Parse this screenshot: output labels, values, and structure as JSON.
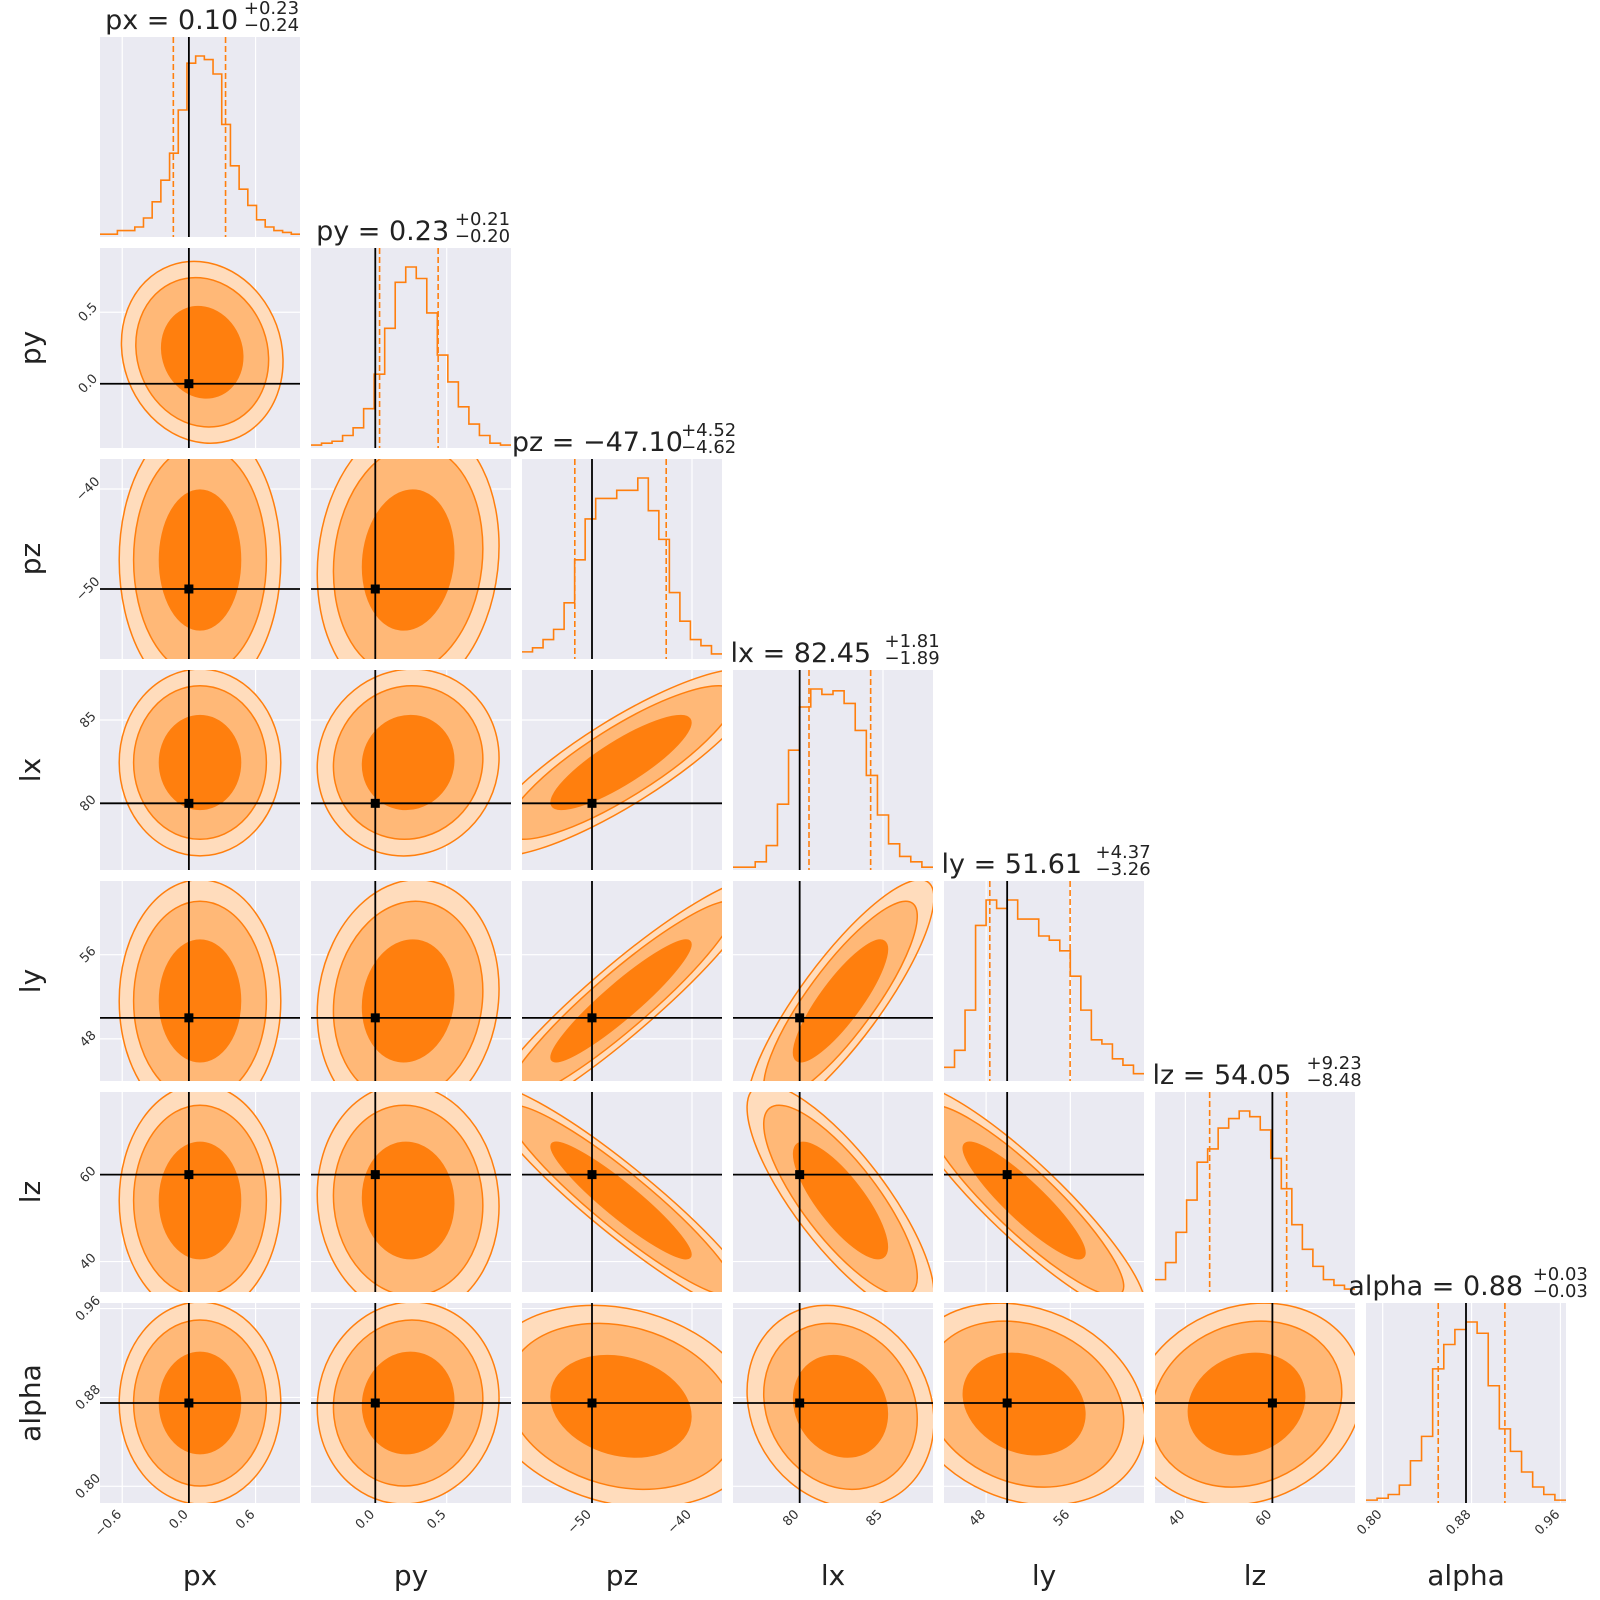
{
  "chart_data": {
    "type": "corner",
    "parameters": [
      "px",
      "py",
      "pz",
      "lx",
      "ly",
      "lz",
      "alpha"
    ],
    "colors": {
      "accent": "#ff7f0e",
      "fill_1sigma": "#ff7f0e",
      "fill_2sigma": "#ffb877",
      "fill_3sigma": "#ffdcbc",
      "panel_bg": "#eaeaf2",
      "truth": "#000000"
    },
    "truths": {
      "px": 0.0,
      "py": 0.0,
      "pz": -50,
      "lx": 80,
      "ly": 50,
      "lz": 60,
      "alpha": 0.875
    },
    "ranges": {
      "px": [
        -0.8,
        1.0
      ],
      "py": [
        -0.45,
        0.95
      ],
      "pz": [
        -57,
        -37
      ],
      "lx": [
        76,
        88
      ],
      "ly": [
        44,
        63
      ],
      "lz": [
        33,
        79
      ],
      "alpha": [
        0.785,
        0.965
      ]
    },
    "ticks": {
      "px": {
        "values": [
          -0.6,
          0.0,
          0.6
        ],
        "labels": [
          "−0.6",
          "0.0",
          "0.6"
        ]
      },
      "py": {
        "values": [
          0.0,
          0.5
        ],
        "labels": [
          "0.0",
          "0.5"
        ]
      },
      "pz": {
        "values": [
          -50,
          -40
        ],
        "labels": [
          "−50",
          "−40"
        ]
      },
      "lx": {
        "values": [
          80,
          85
        ],
        "labels": [
          "80",
          "85"
        ]
      },
      "ly": {
        "values": [
          48,
          56
        ],
        "labels": [
          "48",
          "56"
        ]
      },
      "lz": {
        "values": [
          40,
          60
        ],
        "labels": [
          "40",
          "60"
        ]
      },
      "alpha": {
        "values": [
          0.8,
          0.88,
          0.96
        ],
        "labels": [
          "0.80",
          "0.88",
          "0.96"
        ]
      }
    },
    "axis_labels": [
      "px",
      "py",
      "pz",
      "lx",
      "ly",
      "lz",
      "alpha"
    ],
    "titles": [
      {
        "param": "px",
        "prefix": "px = ",
        "median": "0.10",
        "plus": "+0.23",
        "minus": "−0.24"
      },
      {
        "param": "py",
        "prefix": "py = ",
        "median": "0.23",
        "plus": "+0.21",
        "minus": "−0.20"
      },
      {
        "param": "pz",
        "prefix": "pz = ",
        "median": "−47.10",
        "plus": "+4.52",
        "minus": "−4.62"
      },
      {
        "param": "lx",
        "prefix": "lx = ",
        "median": "82.45",
        "plus": "+1.81",
        "minus": "−1.89"
      },
      {
        "param": "ly",
        "prefix": "ly = ",
        "median": "51.61",
        "plus": "+4.37",
        "minus": "−3.26"
      },
      {
        "param": "lz",
        "prefix": "lz = ",
        "median": "54.05",
        "plus": "+9.23",
        "minus": "−8.48"
      },
      {
        "param": "alpha",
        "prefix": "alpha = ",
        "median": "0.88",
        "plus": "+0.03",
        "minus": "−0.03"
      }
    ],
    "marginals": [
      {
        "param": "px",
        "median": 0.1,
        "q_lo": -0.14,
        "q_hi": 0.33,
        "counts": [
          1,
          1,
          3,
          3,
          5,
          10,
          19,
          31,
          46,
          70,
          96,
          100,
          98,
          90,
          62,
          39,
          26,
          17,
          9,
          5,
          3,
          2,
          1
        ]
      },
      {
        "param": "py",
        "median": 0.23,
        "q_lo": 0.03,
        "q_hi": 0.44,
        "counts": [
          1,
          2,
          3,
          6,
          10,
          20,
          38,
          62,
          86,
          94,
          88,
          70,
          48,
          34,
          21,
          12,
          6,
          2,
          1
        ]
      },
      {
        "param": "pz",
        "median": -47.1,
        "q_lo": -51.72,
        "q_hi": -42.58,
        "counts": [
          3,
          5,
          9,
          14,
          27,
          48,
          68,
          78,
          78,
          82,
          82,
          88,
          72,
          58,
          32,
          18,
          9,
          6,
          2
        ]
      },
      {
        "param": "lx",
        "median": 82.45,
        "q_lo": 80.56,
        "q_hi": 84.26,
        "counts": [
          1,
          1,
          4,
          13,
          36,
          66,
          90,
          100,
          97,
          99,
          92,
          77,
          52,
          30,
          14,
          7,
          4,
          1
        ]
      },
      {
        "param": "ly",
        "median": 51.61,
        "q_lo": 48.35,
        "q_hi": 55.98,
        "counts": [
          6,
          14,
          33,
          73,
          85,
          81,
          85,
          76,
          76,
          68,
          66,
          61,
          49,
          33,
          19,
          17,
          10,
          7,
          3
        ]
      },
      {
        "param": "lz",
        "median": 54.05,
        "q_lo": 45.57,
        "q_hi": 63.28,
        "counts": [
          6,
          15,
          31,
          48,
          68,
          75,
          86,
          91,
          95,
          92,
          85,
          70,
          54,
          35,
          22,
          13,
          6,
          3,
          1
        ]
      },
      {
        "param": "alpha",
        "median": 0.88,
        "q_lo": 0.85,
        "q_hi": 0.91,
        "counts": [
          1,
          2,
          4,
          9,
          22,
          35,
          71,
          84,
          92,
          96,
          90,
          62,
          39,
          27,
          16,
          8,
          4,
          1
        ]
      }
    ],
    "joints": [
      {
        "x": "px",
        "y": "py",
        "mean": [
          0.12,
          0.22
        ],
        "sd": [
          0.24,
          0.21
        ],
        "rho": -0.1
      },
      {
        "x": "px",
        "y": "pz",
        "mean": [
          0.1,
          -47.1
        ],
        "sd": [
          0.24,
          4.6
        ],
        "rho": 0.0
      },
      {
        "x": "py",
        "y": "pz",
        "mean": [
          0.23,
          -47.1
        ],
        "sd": [
          0.21,
          4.6
        ],
        "rho": 0.1
      },
      {
        "x": "px",
        "y": "lx",
        "mean": [
          0.1,
          82.45
        ],
        "sd": [
          0.24,
          1.85
        ],
        "rho": 0.0
      },
      {
        "x": "py",
        "y": "lx",
        "mean": [
          0.23,
          82.45
        ],
        "sd": [
          0.21,
          1.85
        ],
        "rho": 0.05
      },
      {
        "x": "pz",
        "y": "lx",
        "mean": [
          -47.1,
          82.45
        ],
        "sd": [
          4.6,
          1.85
        ],
        "rho": 0.85
      },
      {
        "x": "px",
        "y": "ly",
        "mean": [
          0.1,
          51.61
        ],
        "sd": [
          0.24,
          3.8
        ],
        "rho": 0.0
      },
      {
        "x": "py",
        "y": "ly",
        "mean": [
          0.23,
          51.61
        ],
        "sd": [
          0.21,
          3.8
        ],
        "rho": 0.1
      },
      {
        "x": "pz",
        "y": "ly",
        "mean": [
          -47.1,
          51.61
        ],
        "sd": [
          4.6,
          3.8
        ],
        "rho": 0.93
      },
      {
        "x": "lx",
        "y": "ly",
        "mean": [
          82.45,
          51.61
        ],
        "sd": [
          1.85,
          3.8
        ],
        "rho": 0.85
      },
      {
        "x": "px",
        "y": "lz",
        "mean": [
          0.1,
          54.05
        ],
        "sd": [
          0.24,
          8.8
        ],
        "rho": 0.0
      },
      {
        "x": "py",
        "y": "lz",
        "mean": [
          0.23,
          54.05
        ],
        "sd": [
          0.21,
          8.8
        ],
        "rho": -0.05
      },
      {
        "x": "pz",
        "y": "lz",
        "mean": [
          -47.1,
          54.05
        ],
        "sd": [
          4.6,
          8.8
        ],
        "rho": -0.93
      },
      {
        "x": "lx",
        "y": "lz",
        "mean": [
          82.45,
          54.05
        ],
        "sd": [
          1.85,
          8.8
        ],
        "rho": -0.8
      },
      {
        "x": "ly",
        "y": "lz",
        "mean": [
          51.61,
          54.05
        ],
        "sd": [
          3.8,
          8.8
        ],
        "rho": -0.9
      },
      {
        "x": "px",
        "y": "alpha",
        "mean": [
          0.1,
          0.875
        ],
        "sd": [
          0.24,
          0.03
        ],
        "rho": 0.0
      },
      {
        "x": "py",
        "y": "alpha",
        "mean": [
          0.23,
          0.875
        ],
        "sd": [
          0.21,
          0.03
        ],
        "rho": 0.05
      },
      {
        "x": "pz",
        "y": "alpha",
        "mean": [
          -47.1,
          0.872
        ],
        "sd": [
          4.6,
          0.03
        ],
        "rho": -0.2
      },
      {
        "x": "lx",
        "y": "alpha",
        "mean": [
          82.45,
          0.872
        ],
        "sd": [
          1.85,
          0.03
        ],
        "rho": -0.15
      },
      {
        "x": "ly",
        "y": "alpha",
        "mean": [
          51.61,
          0.874
        ],
        "sd": [
          3.8,
          0.03
        ],
        "rho": -0.2
      },
      {
        "x": "lz",
        "y": "alpha",
        "mean": [
          54.05,
          0.874
        ],
        "sd": [
          8.8,
          0.03
        ],
        "rho": 0.15
      }
    ]
  }
}
